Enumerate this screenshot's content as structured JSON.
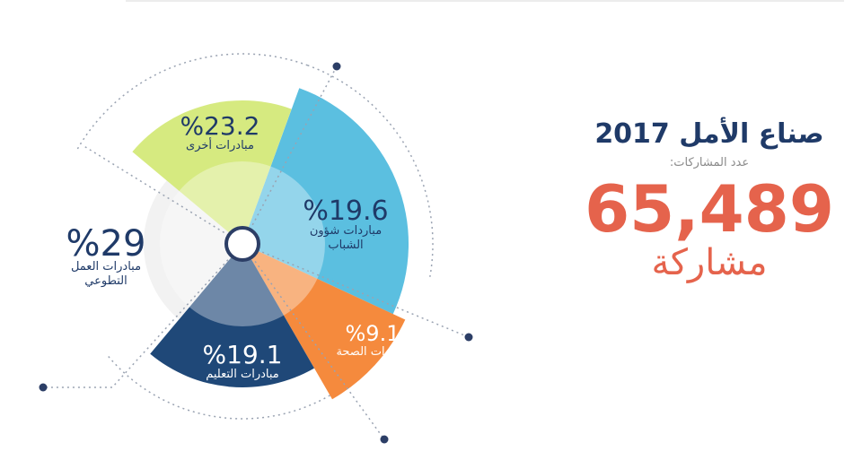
{
  "header": {
    "title": "صناع الأمل 2017",
    "subtitle": "عدد المشاركات:",
    "total": "65,489",
    "unit": "مشاركة"
  },
  "chart_data": {
    "type": "pie",
    "title": "",
    "slices": [
      {
        "label": "مباردات شؤون الشباب",
        "value": 19.6,
        "value_text": "%19.6",
        "color": "#5bbfe0",
        "text_color": "#1f3a68"
      },
      {
        "label": "مبادرات الصحة",
        "value": 9.1,
        "value_text": "%9.1",
        "color": "#f58a3d",
        "text_color": "#ffffff"
      },
      {
        "label": "مبادرات التعليم",
        "value": 19.1,
        "value_text": "%19.1",
        "color": "#1f4878",
        "text_color": "#ffffff"
      },
      {
        "label": "مبادرات العمل التطوعي",
        "value": 29,
        "value_text": "%29",
        "color": "#f2f2f2",
        "text_color": "#1f3a68"
      },
      {
        "label": "مبادرات أخرى",
        "value": 23.2,
        "value_text": "%23.2",
        "color": "#d6ea80",
        "text_color": "#1f3a68"
      }
    ]
  }
}
